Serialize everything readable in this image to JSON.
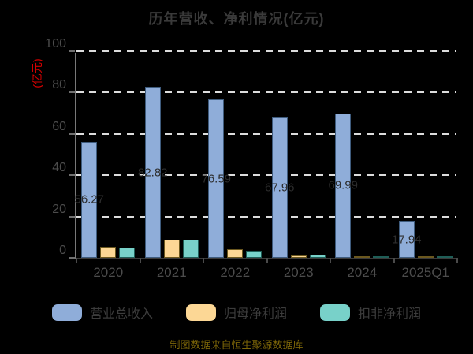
{
  "title": "历年营收、净利情况(亿元)",
  "y_axis_unit": "(亿元)",
  "footer_note": "制图数据来自恒生聚源数据库",
  "legend": [
    {
      "label": "营业总收入",
      "color": "#8fadd9",
      "border": "#3f5c7e"
    },
    {
      "label": "归母净利润",
      "color": "#fcd795",
      "border": "#6b581f"
    },
    {
      "label": "扣非净利润",
      "color": "#78d1c9",
      "border": "#1f5e57"
    }
  ],
  "chart_data": {
    "type": "bar",
    "categories": [
      "2020",
      "2021",
      "2022",
      "2023",
      "2024",
      "2025Q1"
    ],
    "series": [
      {
        "name": "营业总收入",
        "key": "revenue",
        "color": "#8fadd9",
        "border": "#3f5c7e",
        "values": [
          56.27,
          82.82,
          76.59,
          67.96,
          69.99,
          17.94
        ],
        "labels": [
          "56.27",
          "82.82",
          "76.59",
          "67.96",
          "69.99",
          "17.94"
        ]
      },
      {
        "name": "归母净利润",
        "key": "net-profit",
        "color": "#fcd795",
        "border": "#6b581f",
        "values": [
          5.3,
          8.8,
          4.1,
          1.3,
          0.25,
          0.3
        ]
      },
      {
        "name": "扣非净利润",
        "key": "deducted-net-profit",
        "color": "#78d1c9",
        "border": "#1f5e57",
        "values": [
          4.9,
          8.8,
          3.5,
          1.7,
          0.2,
          0.3
        ]
      }
    ],
    "title": "历年营收、净利情况(亿元)",
    "xlabel": "",
    "ylabel": "(亿元)",
    "ylim": [
      0,
      100
    ],
    "yticks": [
      0,
      20,
      40,
      60,
      80,
      100
    ],
    "grid": "dashed-horizontal",
    "legend_position": "bottom"
  }
}
